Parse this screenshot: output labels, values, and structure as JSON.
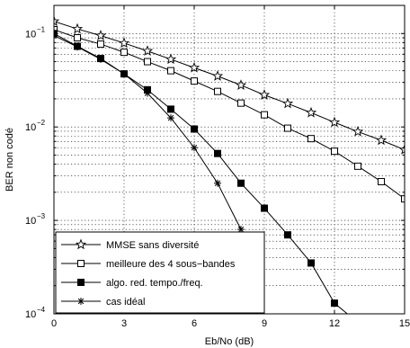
{
  "chart_data": {
    "type": "line",
    "xlabel": "Eb/No (dB)",
    "ylabel": "BER non codé",
    "xlim": [
      0,
      15
    ],
    "ylim": [
      0.0001,
      0.2
    ],
    "yscale": "log",
    "grid": true,
    "legend_position": "bottom-left",
    "x_ticks": [
      0,
      3,
      6,
      9,
      12,
      15
    ],
    "x_tick_labels": [
      "0",
      "3",
      "6",
      "9",
      "12",
      "15"
    ],
    "y_ticks": [
      0.0001,
      0.001,
      0.01,
      0.1
    ],
    "y_tick_labels": [
      {
        "base": "10",
        "exp": "−4"
      },
      {
        "base": "10",
        "exp": "−3"
      },
      {
        "base": "10",
        "exp": "−2"
      },
      {
        "base": "10",
        "exp": "−1"
      }
    ],
    "series": [
      {
        "name": "MMSE sans diversité",
        "marker": "star",
        "color": "#000000",
        "x": [
          0,
          1,
          2,
          3,
          4,
          5,
          6,
          7,
          8,
          9,
          10,
          11,
          12,
          13,
          14,
          15
        ],
        "y": [
          0.135,
          0.112,
          0.095,
          0.079,
          0.065,
          0.053,
          0.043,
          0.035,
          0.028,
          0.022,
          0.0178,
          0.0142,
          0.0112,
          0.0089,
          0.0072,
          0.0057
        ]
      },
      {
        "name": "meilleure des 4 sous−bandes",
        "marker": "square-open",
        "color": "#000000",
        "x": [
          0,
          1,
          2,
          3,
          4,
          5,
          6,
          7,
          8,
          9,
          10,
          11,
          12,
          13,
          14,
          15
        ],
        "y": [
          0.11,
          0.09,
          0.077,
          0.063,
          0.05,
          0.04,
          0.031,
          0.024,
          0.018,
          0.0135,
          0.0097,
          0.0075,
          0.0055,
          0.0038,
          0.0026,
          0.0017
        ]
      },
      {
        "name": "algo. red. tempo./freq.",
        "marker": "square-filled",
        "color": "#000000",
        "x": [
          0,
          1,
          2,
          3,
          4,
          5,
          6,
          7,
          8,
          9,
          10,
          11,
          12,
          12.55
        ],
        "y": [
          0.1,
          0.073,
          0.054,
          0.037,
          0.025,
          0.0155,
          0.0095,
          0.0052,
          0.0025,
          0.00135,
          0.0007,
          0.00035,
          0.00013,
          0.0001
        ]
      },
      {
        "name": "cas idéal",
        "marker": "asterisk",
        "color": "#000000",
        "x": [
          0,
          1,
          2,
          3,
          4,
          5,
          6,
          7,
          8
        ],
        "y": [
          0.095,
          0.072,
          0.053,
          0.037,
          0.023,
          0.0125,
          0.006,
          0.0025,
          0.0008
        ]
      }
    ]
  }
}
